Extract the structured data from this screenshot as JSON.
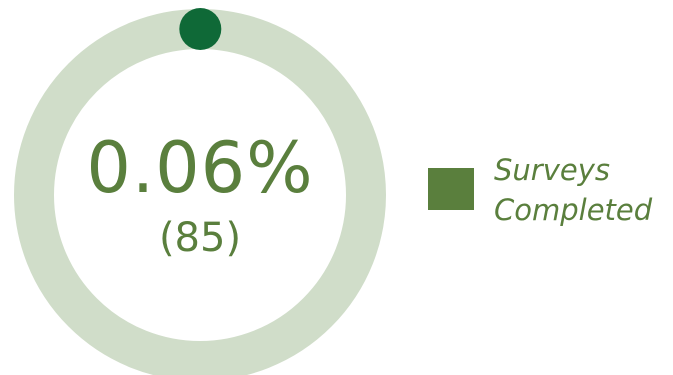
{
  "chart_data": {
    "type": "pie",
    "center_value": "0.06%",
    "center_count": "(85)",
    "series": [
      {
        "name": "Surveys Completed",
        "percent": 0.06,
        "count": 85,
        "color": "#0f6937"
      }
    ],
    "ring_color": "#d0ddc9",
    "text_color": "#5a7f3d",
    "legend": {
      "items": [
        {
          "line1": "Surveys",
          "line2": "Completed",
          "color": "#5a7f3d"
        }
      ],
      "position": "right"
    }
  }
}
